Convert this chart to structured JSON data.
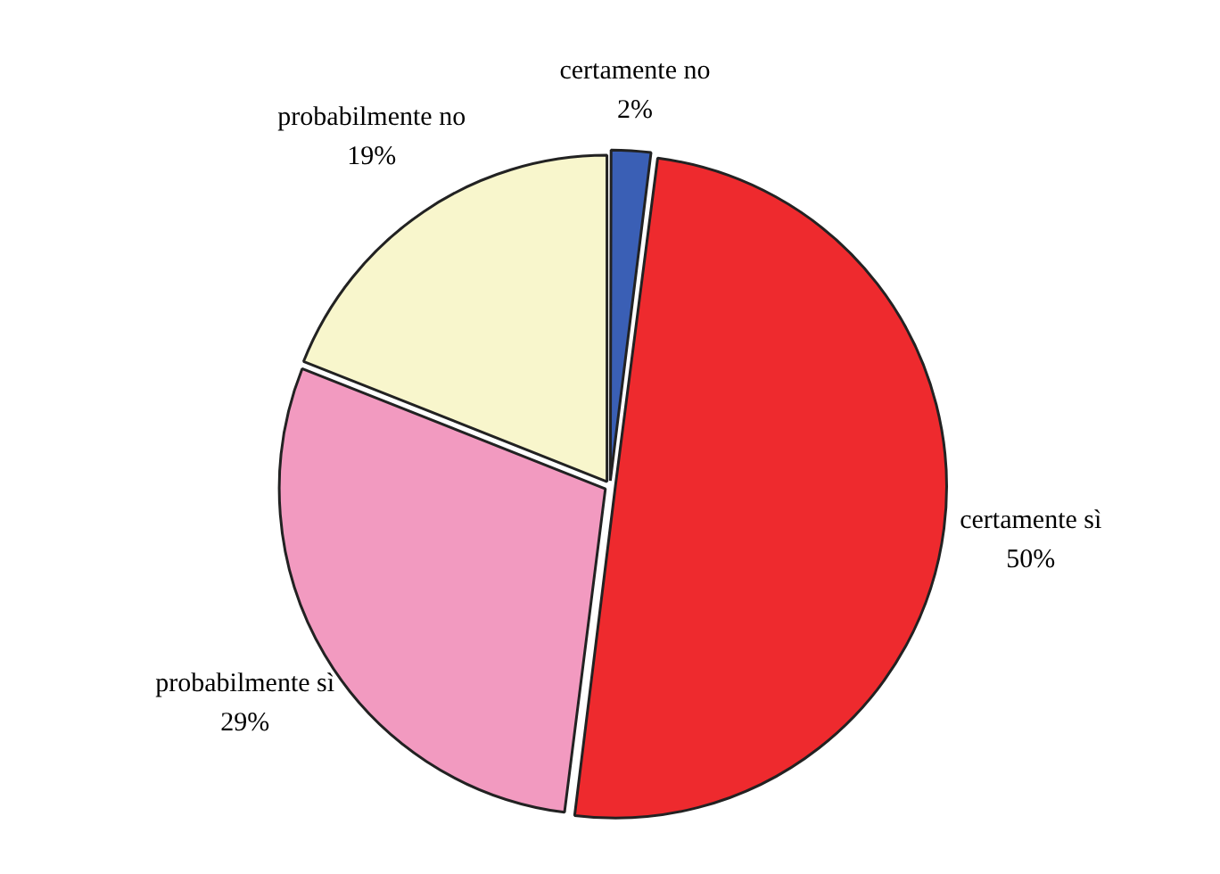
{
  "chart_data": {
    "type": "pie",
    "categories": [
      "certamente no",
      "certamente sì",
      "probabilmente sì",
      "probabilmente no"
    ],
    "values": [
      2,
      50,
      29,
      19
    ],
    "colors": [
      "#3a5fb5",
      "#ee2a2e",
      "#f29ac0",
      "#f8f6cc"
    ],
    "value_labels": [
      "2%",
      "50%",
      "29%",
      "19%"
    ],
    "legend": false
  }
}
